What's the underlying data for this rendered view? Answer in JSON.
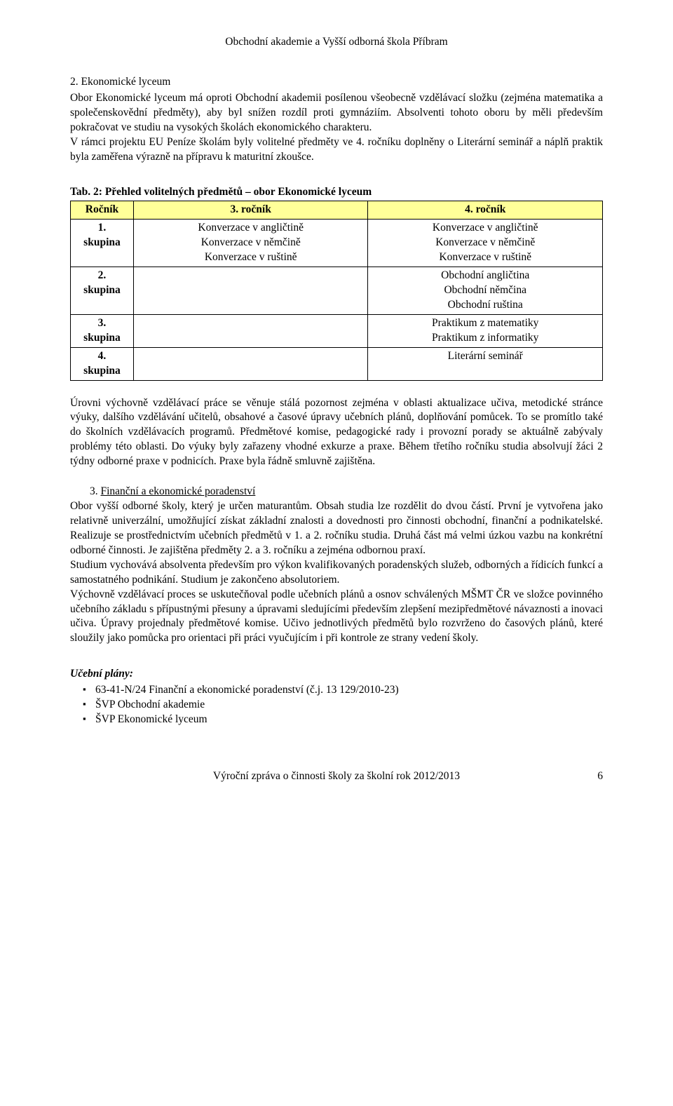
{
  "doc": {
    "header": "Obchodní akademie a Vyšší odborná škola Příbram",
    "footer_text": "Výroční zpráva o činnosti školy za školní rok 2012/2013",
    "footer_page": "6"
  },
  "section2": {
    "title": "2. Ekonomické lyceum",
    "body": "Obor Ekonomické lyceum má oproti Obchodní akademii posílenou všeobecně vzdělávací složku (zejména matematika a společenskovědní předměty), aby byl snížen rozdíl proti gymnáziím. Absolventi tohoto oboru by měli především pokračovat ve studiu na vysokých školách ekonomického charakteru.",
    "body2": "V rámci projektu EU Peníze školám byly volitelné předměty ve 4. ročníku doplněny o Literární seminář a náplň praktik byla zaměřena výrazně na přípravu k maturitní zkoušce."
  },
  "table": {
    "caption": "Tab. 2: Přehled volitelných předmětů – obor Ekonomické lyceum",
    "header_bg": "#ffff99",
    "border_color": "#000000",
    "columns": [
      "Ročník",
      "3. ročník",
      "4. ročník"
    ],
    "rows": [
      {
        "rocnik": "1.\nskupina",
        "c3": "Konverzace v angličtině\nKonverzace v němčině\nKonverzace v ruštině",
        "c4": "Konverzace v angličtině\nKonverzace v němčině\nKonverzace v ruštině"
      },
      {
        "rocnik": "2.\nskupina",
        "c3": "",
        "c4": "Obchodní angličtina\nObchodní  němčina\nObchodní  ruština"
      },
      {
        "rocnik": "3.\nskupina",
        "c3": "",
        "c4": "Praktikum z matematiky\nPraktikum z informatiky"
      },
      {
        "rocnik": "4.\nskupina",
        "c3": "",
        "c4": "Literární seminář"
      }
    ]
  },
  "para2": "Úrovni výchovně vzdělávací práce se věnuje stálá pozornost zejména v oblasti aktualizace učiva, metodické stránce výuky, dalšího vzdělávání učitelů, obsahové a časové úpravy učebních plánů, doplňování pomůcek. To se promítlo také do školních vzdělávacích programů. Předmětové komise, pedagogické rady i provozní porady se aktuálně zabývaly problémy této oblasti. Do výuky byly zařazeny vhodné exkurze a praxe. Během třetího ročníku studia absolvují žáci 2 týdny odborné praxe v podnicích. Praxe byla řádně smluvně zajištěna.",
  "section3": {
    "num": "3. ",
    "title": "Finanční a ekonomické poradenství",
    "body": "Obor vyšší odborné školy, který je určen maturantům. Obsah studia lze rozdělit do dvou částí. První je vytvořena jako relativně univerzální, umožňující získat základní znalosti a dovednosti pro činnosti obchodní, finanční a podnikatelské. Realizuje se prostřednictvím učebních předmětů v 1. a 2. ročníku studia. Druhá část má velmi úzkou vazbu na konkrétní odborné činnosti. Je zajištěna předměty 2. a 3. ročníku a zejména odbornou praxí.",
    "body2": "Studium vychovává absolventa především pro výkon kvalifikovaných poradenských služeb, odborných a řídicích funkcí a samostatného podnikání. Studium je zakončeno absolutoriem.",
    "body3": "Výchovně vzdělávací proces se uskutečňoval podle učebních plánů a osnov schválených MŠMT ČR ve složce povinného učebního základu s přípustnými přesuny a úpravami sledujícími především zlepšení mezipředmětové návaznosti a inovaci učiva. Úpravy projednaly předmětové komise. Učivo jednotlivých předmětů bylo rozvrženo do časových plánů, které sloužily jako pomůcka pro orientaci při práci vyučujícím i při kontrole ze strany vedení školy."
  },
  "plans": {
    "title": "Učební plány:",
    "items": [
      "63-41-N/24  Finanční a ekonomické poradenství (č.j.  13 129/2010-23)",
      "ŠVP Obchodní akademie",
      "ŠVP Ekonomické lyceum"
    ]
  }
}
